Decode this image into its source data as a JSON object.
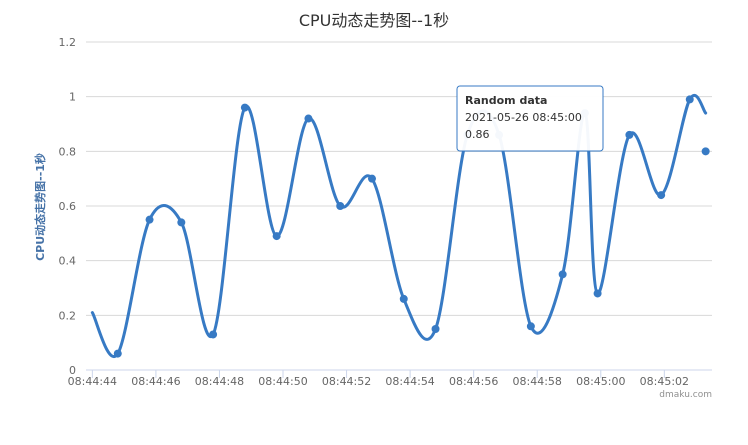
{
  "chart_data": {
    "type": "line",
    "title": "CPU动态走势图--1秒",
    "ylabel": "CPU动态走势图--1秒",
    "x": [
      "08:44:44",
      "08:44:45",
      "08:44:46",
      "08:44:47",
      "08:44:48",
      "08:44:49",
      "08:44:50",
      "08:44:51",
      "08:44:52",
      "08:44:53",
      "08:44:54",
      "08:44:55",
      "08:44:56",
      "08:44:57",
      "08:44:58",
      "08:44:59",
      "08:45:00",
      "08:45:01",
      "08:45:02",
      "08:45:03"
    ],
    "x_ticks": [
      "08:44:44",
      "08:44:46",
      "08:44:48",
      "08:44:50",
      "08:44:52",
      "08:44:54",
      "08:44:56",
      "08:44:58",
      "08:45:00",
      "08:45:02"
    ],
    "series": [
      {
        "name": "Random data",
        "color": "#377ac4",
        "points": [
          {
            "t": "08:44:44",
            "y": 0.21
          },
          {
            "t": "08:44:44.8",
            "y": 0.06
          },
          {
            "t": "08:44:45.8",
            "y": 0.55
          },
          {
            "t": "08:44:46.8",
            "y": 0.54
          },
          {
            "t": "08:44:47.8",
            "y": 0.13
          },
          {
            "t": "08:44:48.8",
            "y": 0.96
          },
          {
            "t": "08:44:49.8",
            "y": 0.49
          },
          {
            "t": "08:44:50.8",
            "y": 0.92
          },
          {
            "t": "08:44:51.8",
            "y": 0.6
          },
          {
            "t": "08:44:52.8",
            "y": 0.7
          },
          {
            "t": "08:44:53.8",
            "y": 0.26
          },
          {
            "t": "08:44:54.8",
            "y": 0.15
          },
          {
            "t": "08:44:55.8",
            "y": 0.86
          },
          {
            "t": "08:44:56.8",
            "y": 0.86
          },
          {
            "t": "08:44:57.8",
            "y": 0.16
          },
          {
            "t": "08:44:58.8",
            "y": 0.35
          },
          {
            "t": "08:44:59.5",
            "y": 0.94
          },
          {
            "t": "08:44:59.9",
            "y": 0.28
          },
          {
            "t": "08:45:00.9",
            "y": 0.86
          },
          {
            "t": "08:45:01.9",
            "y": 0.64
          },
          {
            "t": "08:45:02.8",
            "y": 0.99
          },
          {
            "t": "08:45:03.3",
            "y": 0.94
          }
        ]
      }
    ],
    "extra_marker": {
      "t": "08:45:03.3",
      "y": 0.8
    },
    "y_ticks": [
      0,
      0.2,
      0.4,
      0.6,
      0.8,
      1,
      1.2
    ],
    "ylim": [
      0,
      1.2
    ],
    "xlim": [
      "08:44:43.8",
      "08:45:03.5"
    ],
    "grid": true,
    "legend": "none",
    "colors": {
      "gridline": "#d8d8d8",
      "axis": "#ccd6eb",
      "line": "#377ac4",
      "ylabel": "#4572a7",
      "tooltip_border": "#377ac4"
    }
  },
  "tooltip": {
    "series_name": "Random data",
    "time_label": "2021-05-26 08:45:00",
    "value_label": "0.86"
  },
  "credits": "dmaku.com"
}
